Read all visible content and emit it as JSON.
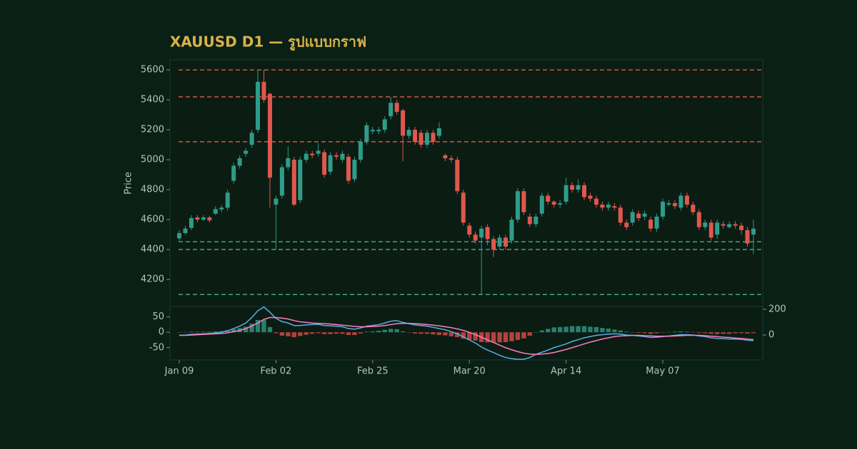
{
  "chart_data": [
    {
      "type": "candlestick",
      "title": "XAUUSD D1 — รูปแบบกราฟ",
      "ylabel": "Price",
      "categories": [
        "Jan 09",
        null,
        null,
        null,
        null,
        null,
        null,
        null,
        null,
        null,
        null,
        null,
        null,
        null,
        null,
        null,
        "Feb 02",
        null,
        null,
        null,
        null,
        null,
        null,
        null,
        null,
        null,
        null,
        null,
        null,
        null,
        null,
        null,
        "Feb 25",
        null,
        null,
        null,
        null,
        null,
        null,
        null,
        null,
        null,
        null,
        null,
        null,
        null,
        null,
        null,
        "Mar 20",
        null,
        null,
        null,
        null,
        null,
        null,
        null,
        null,
        null,
        null,
        null,
        null,
        null,
        null,
        null,
        "Apr 14",
        null,
        null,
        null,
        null,
        null,
        null,
        null,
        null,
        null,
        null,
        null,
        null,
        null,
        null,
        null,
        "May 07",
        null,
        null,
        null,
        null,
        null,
        null,
        null,
        null,
        null,
        null,
        null,
        null,
        null,
        null,
        null
      ],
      "open": [
        4475,
        4510,
        4545,
        4615,
        4600,
        4615,
        4640,
        4668,
        4680,
        4860,
        4960,
        5040,
        5100,
        5200,
        5520,
        5440,
        4700,
        4760,
        4950,
        5000,
        4730,
        5000,
        5040,
        5040,
        5050,
        4920,
        5030,
        5000,
        5020,
        4870,
        5000,
        5120,
        5190,
        5190,
        5200,
        5290,
        5380,
        5330,
        5160,
        5200,
        5180,
        5100,
        5180,
        5160,
        5030,
        5010,
        5000,
        4780,
        4560,
        4500,
        4480,
        4550,
        4470,
        4420,
        4480,
        4460,
        4600,
        4790,
        4620,
        4570,
        4640,
        4760,
        4720,
        4700,
        4720,
        4830,
        4800,
        4830,
        4760,
        4740,
        4700,
        4680,
        4690,
        4680,
        4580,
        4580,
        4640,
        4620,
        4600,
        4540,
        4620,
        4700,
        4710,
        4680,
        4760,
        4700,
        4650,
        4550,
        4580,
        4500,
        4570,
        4550,
        4570,
        4560,
        4530,
        4500
      ],
      "high": [
        4530,
        4560,
        4630,
        4630,
        4630,
        4625,
        4690,
        4695,
        4800,
        4980,
        5030,
        5080,
        5200,
        5600,
        5600,
        5450,
        4760,
        4970,
        5090,
        5020,
        5020,
        5060,
        5060,
        5110,
        5070,
        5050,
        5050,
        5060,
        5040,
        5020,
        5140,
        5250,
        5220,
        5220,
        5290,
        5420,
        5400,
        5340,
        5220,
        5220,
        5200,
        5200,
        5200,
        5250,
        5040,
        5030,
        5020,
        4800,
        4580,
        4520,
        4560,
        4570,
        4490,
        4500,
        4500,
        4620,
        4810,
        4810,
        4640,
        4640,
        4780,
        4780,
        4730,
        4730,
        4880,
        4850,
        4870,
        4850,
        4780,
        4760,
        4720,
        4720,
        4710,
        4700,
        4600,
        4670,
        4660,
        4660,
        4620,
        4640,
        4740,
        4730,
        4730,
        4780,
        4780,
        4720,
        4670,
        4600,
        4600,
        4600,
        4590,
        4590,
        4590,
        4580,
        4550,
        4600
      ],
      "low": [
        4460,
        4500,
        4530,
        4580,
        4590,
        4580,
        4630,
        4650,
        4660,
        4840,
        4940,
        5020,
        5080,
        5180,
        5380,
        4680,
        4400,
        4740,
        4930,
        4690,
        4710,
        4980,
        5010,
        5020,
        4880,
        4900,
        5000,
        4980,
        4840,
        4850,
        4980,
        5100,
        5170,
        5170,
        5180,
        5270,
        5300,
        4990,
        5140,
        5100,
        5080,
        5080,
        5100,
        5140,
        4990,
        4980,
        4770,
        4560,
        4480,
        4440,
        4100,
        4430,
        4350,
        4400,
        4400,
        4440,
        4580,
        4630,
        4550,
        4550,
        4620,
        4700,
        4680,
        4680,
        4700,
        4780,
        4780,
        4730,
        4720,
        4680,
        4660,
        4660,
        4660,
        4560,
        4530,
        4560,
        4590,
        4600,
        4520,
        4520,
        4600,
        4690,
        4670,
        4660,
        4680,
        4630,
        4530,
        4530,
        4460,
        4470,
        4540,
        4540,
        4540,
        4500,
        4420,
        4370
      ],
      "close": [
        4510,
        4540,
        4610,
        4600,
        4615,
        4595,
        4670,
        4680,
        4780,
        4960,
        5010,
        5060,
        5180,
        5520,
        5400,
        4880,
        4740,
        4950,
        5010,
        4700,
        5000,
        5040,
        5030,
        5060,
        4900,
        5030,
        5020,
        5040,
        4860,
        5000,
        5120,
        5230,
        5200,
        5200,
        5270,
        5380,
        5320,
        5160,
        5200,
        5120,
        5100,
        5180,
        5120,
        5210,
        5010,
        5000,
        4790,
        4580,
        4500,
        4460,
        4540,
        4470,
        4400,
        4480,
        4420,
        4600,
        4790,
        4650,
        4570,
        4620,
        4760,
        4720,
        4700,
        4710,
        4830,
        4800,
        4830,
        4750,
        4740,
        4700,
        4680,
        4700,
        4680,
        4580,
        4550,
        4650,
        4610,
        4640,
        4540,
        4620,
        4720,
        4710,
        4690,
        4760,
        4700,
        4650,
        4550,
        4580,
        4480,
        4580,
        4560,
        4570,
        4560,
        4530,
        4440,
        4540
      ],
      "up_color": "#2f9c8a",
      "down_color": "#e0574d",
      "ylim": [
        4020,
        5667
      ],
      "yticks": [
        4200,
        4400,
        4600,
        4800,
        5000,
        5200,
        5400,
        5600
      ],
      "hlines": [
        {
          "value": 5600,
          "color": "#d2553f"
        },
        {
          "value": 5420,
          "color": "#d2553f"
        },
        {
          "value": 5120,
          "color": "#d2553f"
        },
        {
          "value": 4452,
          "color": "#3aa391"
        },
        {
          "value": 4400,
          "color": "#3aa391"
        },
        {
          "value": 4100,
          "color": "#3aa391"
        }
      ]
    },
    {
      "type": "macd",
      "ylim": [
        -90,
        84
      ],
      "yticks": [
        -50,
        0,
        50
      ],
      "y2lim": [
        -194,
        222
      ],
      "y2ticks": [
        0,
        200
      ],
      "series": [
        {
          "color": "#5aaee6",
          "values": [
            -10,
            -9,
            -7,
            -6,
            -5,
            -4,
            -2,
            0,
            5,
            12,
            20,
            30,
            48,
            70,
            82,
            65,
            45,
            35,
            30,
            22,
            22,
            24,
            25,
            26,
            22,
            21,
            20,
            18,
            12,
            10,
            14,
            20,
            22,
            25,
            30,
            36,
            38,
            32,
            28,
            24,
            22,
            20,
            16,
            12,
            8,
            2,
            -5,
            -15,
            -25,
            -35,
            -48,
            -58,
            -66,
            -75,
            -82,
            -86,
            -88,
            -88,
            -82,
            -72,
            -65,
            -58,
            -50,
            -44,
            -38,
            -30,
            -24,
            -18,
            -14,
            -10,
            -8,
            -6,
            -5,
            -6,
            -9,
            -10,
            -12,
            -14,
            -17,
            -16,
            -14,
            -12,
            -10,
            -8,
            -8,
            -9,
            -12,
            -14,
            -18,
            -20,
            -21,
            -22,
            -22,
            -23,
            -26,
            -27
          ]
        },
        {
          "color": "#ff7ec0",
          "values": [
            -10,
            -10,
            -9,
            -8,
            -7,
            -6,
            -5,
            -4,
            -2,
            2,
            6,
            12,
            20,
            30,
            42,
            48,
            48,
            46,
            43,
            38,
            34,
            32,
            30,
            29,
            28,
            27,
            25,
            23,
            21,
            19,
            18,
            18,
            19,
            20,
            22,
            25,
            28,
            29,
            29,
            28,
            27,
            25,
            23,
            21,
            18,
            15,
            11,
            6,
            0,
            -8,
            -16,
            -25,
            -33,
            -42,
            -50,
            -57,
            -63,
            -68,
            -71,
            -72,
            -71,
            -69,
            -66,
            -61,
            -56,
            -50,
            -44,
            -38,
            -32,
            -27,
            -22,
            -18,
            -14,
            -12,
            -11,
            -10,
            -10,
            -11,
            -12,
            -13,
            -13,
            -13,
            -12,
            -11,
            -10,
            -10,
            -10,
            -11,
            -13,
            -14,
            -16,
            -17,
            -19,
            -20,
            -22,
            -24
          ]
        }
      ],
      "histogram": {
        "up_color": "#2a7f6e",
        "down_color": "#b5423d",
        "values": [
          0,
          1,
          2,
          2,
          2,
          2,
          3,
          4,
          7,
          10,
          14,
          18,
          28,
          40,
          40,
          17,
          -3,
          -11,
          -13,
          -16,
          -12,
          -8,
          -5,
          -3,
          -6,
          -6,
          -5,
          -5,
          -9,
          -9,
          -4,
          2,
          3,
          5,
          8,
          11,
          10,
          3,
          -1,
          -4,
          -5,
          -5,
          -7,
          -9,
          -10,
          -13,
          -16,
          -21,
          -25,
          -27,
          -32,
          -33,
          -33,
          -33,
          -32,
          -29,
          -25,
          -20,
          -11,
          0,
          6,
          11,
          16,
          17,
          18,
          20,
          20,
          20,
          18,
          17,
          14,
          12,
          9,
          6,
          2,
          0,
          -2,
          -3,
          -5,
          -3,
          -1,
          1,
          2,
          3,
          2,
          1,
          -2,
          -3,
          -5,
          -6,
          -5,
          -5,
          -3,
          -3,
          -4,
          -3
        ]
      }
    }
  ]
}
